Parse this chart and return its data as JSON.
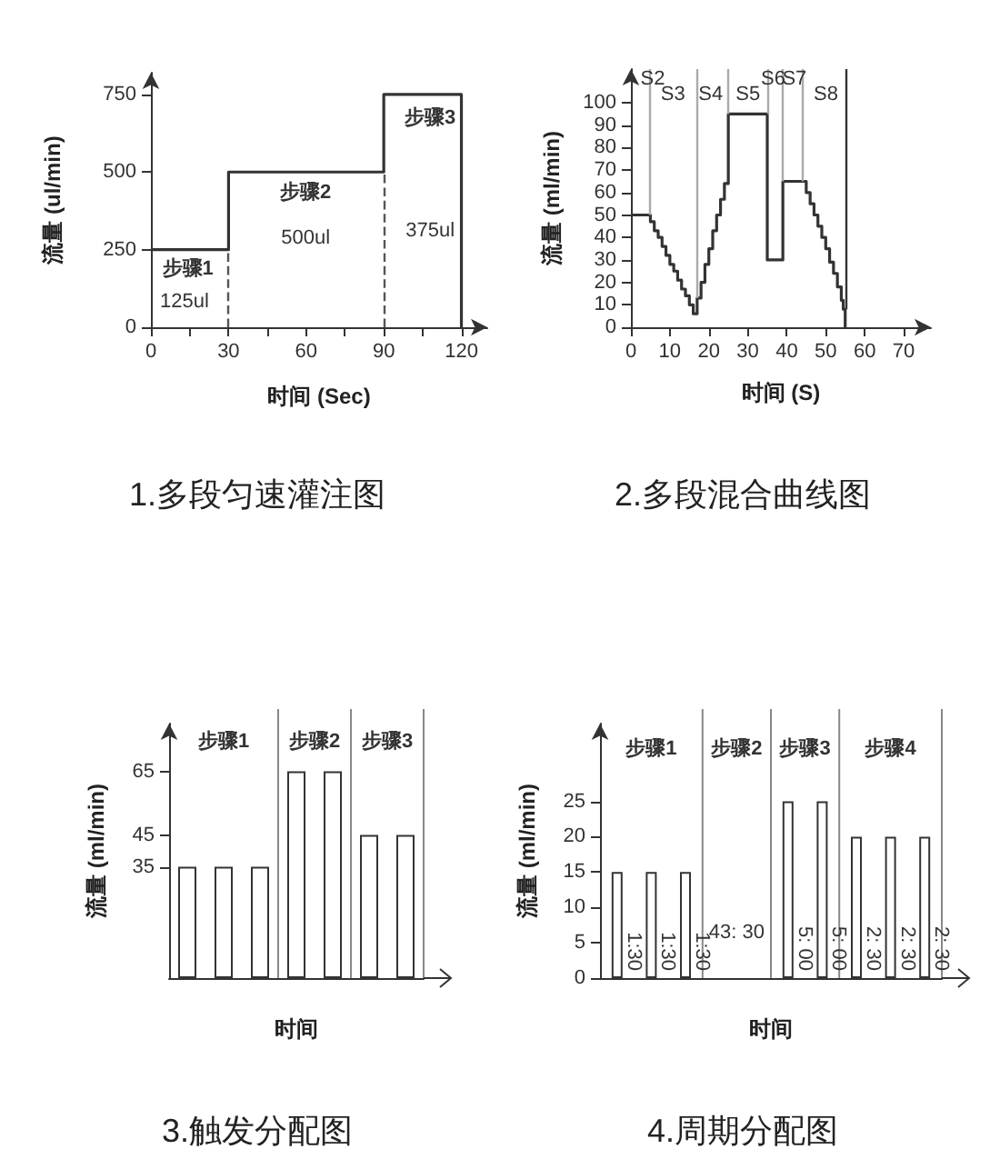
{
  "chart_data": [
    {
      "type": "line",
      "title": "1.多段匀速灌注图",
      "xlabel": "时间 (Sec)",
      "ylabel": "流量 (ul/min)",
      "x": [
        0,
        30,
        30,
        90,
        90,
        120,
        120
      ],
      "values": [
        250,
        250,
        500,
        500,
        750,
        750,
        0
      ],
      "color": "#333333",
      "xlim": [
        0,
        130
      ],
      "ylim": [
        0,
        820
      ],
      "xticks": [
        0,
        {
          "value": 15,
          "label": null
        },
        30,
        {
          "value": 45,
          "label": null
        },
        60,
        {
          "value": 75,
          "label": null
        },
        90,
        {
          "value": 105,
          "label": null
        },
        120
      ],
      "yticks": [
        0,
        250,
        500,
        750
      ],
      "ref_lines": [
        {
          "axis": "x",
          "value": 30,
          "line_style": "dashed",
          "color": "#555555"
        },
        {
          "axis": "x",
          "value": 90,
          "line_style": "dashed",
          "color": "#555555"
        }
      ],
      "annotations": [
        "步骤1",
        "125ul",
        "步骤2",
        "500ul",
        "步骤3",
        "375ul"
      ]
    },
    {
      "type": "line",
      "title": "2.多段混合曲线图",
      "xlabel": "时间 (S)",
      "ylabel": "流量 (ml/min)",
      "x": [
        0,
        5,
        5,
        6,
        6,
        7,
        7,
        8,
        8,
        9,
        9,
        10,
        10,
        11,
        11,
        12,
        12,
        13,
        13,
        14,
        14,
        15,
        15,
        16,
        16,
        17,
        17,
        18,
        18,
        19,
        19,
        20,
        20,
        21,
        21,
        22,
        22,
        23,
        23,
        24,
        24,
        25,
        25,
        35,
        35,
        39,
        39,
        44,
        45,
        45,
        46,
        46,
        47,
        47,
        48,
        48,
        49,
        49,
        50,
        50,
        51,
        51,
        52,
        52,
        53,
        53,
        54,
        54,
        54.5,
        54.5,
        55,
        55
      ],
      "values": [
        50,
        50,
        47,
        47,
        43,
        43,
        40,
        40,
        36,
        36,
        32,
        32,
        28,
        28,
        25,
        25,
        21,
        21,
        17,
        17,
        14,
        14,
        10,
        10,
        6,
        6,
        13,
        13,
        20,
        20,
        28,
        28,
        35,
        35,
        43,
        43,
        50,
        50,
        57,
        57,
        64,
        64,
        95,
        95,
        30,
        30,
        65,
        65,
        65,
        60,
        60,
        55,
        55,
        50,
        50,
        45,
        45,
        40,
        40,
        35,
        35,
        29,
        29,
        24,
        24,
        18,
        18,
        12,
        12,
        8,
        8,
        0
      ],
      "color": "#333333",
      "xlim": [
        0,
        77
      ],
      "ylim": [
        0,
        115
      ],
      "xticks": [
        0,
        10,
        20,
        30,
        40,
        50,
        60,
        70
      ],
      "yticks": [
        0,
        10,
        20,
        30,
        40,
        50,
        60,
        70,
        80,
        90,
        100
      ],
      "ref_lines": [
        {
          "axis": "x",
          "value": 5,
          "color": "#aaaaaa"
        },
        {
          "axis": "x",
          "value": 17,
          "color": "#aaaaaa"
        },
        {
          "axis": "x",
          "value": 25,
          "color": "#aaaaaa"
        },
        {
          "axis": "x",
          "value": 35,
          "color": "#aaaaaa"
        },
        {
          "axis": "x",
          "value": 39,
          "color": "#aaaaaa"
        },
        {
          "axis": "x",
          "value": 44,
          "color": "#aaaaaa"
        },
        {
          "axis": "x",
          "value": 55,
          "color": "#333333"
        }
      ],
      "annotations": [
        "S2",
        "S3",
        "S4",
        "S5",
        "S6",
        "S7",
        "S8"
      ]
    },
    {
      "type": "bar",
      "title": "3.触发分配图",
      "xlabel": "时间",
      "ylabel": "流量 (ml/min)",
      "categories": [
        null,
        null,
        null,
        null,
        null,
        null,
        null
      ],
      "values": [
        35,
        35,
        35,
        65,
        65,
        45,
        45
      ],
      "color": "#ffffff",
      "ylim": [
        0,
        80
      ],
      "yticks": [
        35,
        45,
        65
      ],
      "tick_labels": "y",
      "annotations": [
        "步骤1",
        "步骤2",
        "步骤3"
      ]
    },
    {
      "type": "bar",
      "title": "4.周期分配图",
      "xlabel": "时间",
      "ylabel": "流量 (ml/min)",
      "categories": [
        null,
        null,
        null,
        null,
        null,
        null,
        null,
        null,
        null,
        null
      ],
      "values": [
        15,
        15,
        15,
        null,
        null,
        25,
        25,
        20,
        20,
        20
      ],
      "color": "#ffffff",
      "ylim": [
        0,
        36
      ],
      "yticks": [
        0,
        5,
        10,
        15,
        20,
        25
      ],
      "tick_labels": "y",
      "annotations": [
        "步骤1",
        "步骤2",
        "步骤3",
        "步骤4",
        "1:30",
        "1:30",
        "1:30",
        "43: 30",
        "5: 00",
        "5: 00",
        "2: 30",
        "2: 30",
        "2: 30"
      ]
    }
  ]
}
